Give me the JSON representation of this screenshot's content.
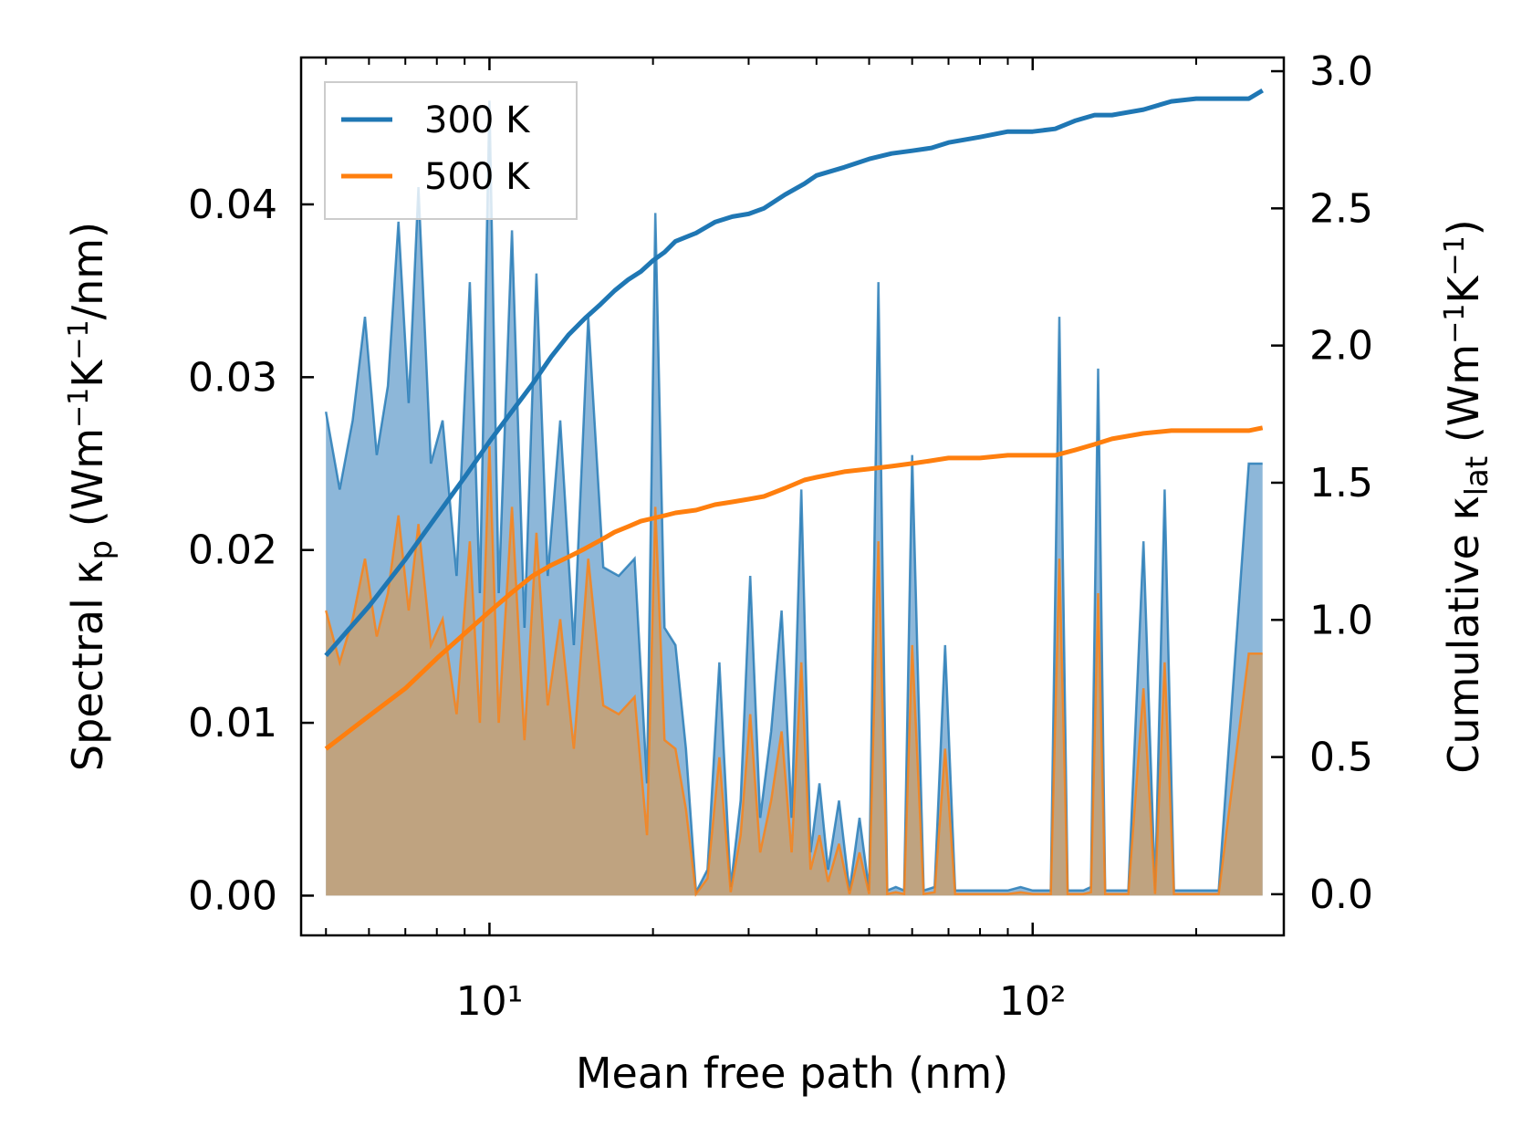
{
  "chart_data": {
    "type": "area",
    "title": "",
    "xlabel": "Mean free path (nm)",
    "ylabel_left": "Spectral κp (Wm⁻¹K⁻¹/nm)",
    "ylabel_right": "Cumulative κlat (Wm⁻¹K⁻¹)",
    "xscale": "log",
    "xlim": [
      4.5,
      290
    ],
    "ylim_left": [
      -0.0023,
      0.0485
    ],
    "ylim_right": [
      -0.15,
      3.05
    ],
    "x_ticks": [
      10,
      100
    ],
    "x_tick_labels": [
      "10¹",
      "10²"
    ],
    "y_ticks_left": [
      0.0,
      0.01,
      0.02,
      0.03,
      0.04
    ],
    "y_tick_labels_left": [
      "0.00",
      "0.01",
      "0.02",
      "0.03",
      "0.04"
    ],
    "y_ticks_right": [
      0.0,
      0.5,
      1.0,
      1.5,
      2.0,
      2.5,
      3.0
    ],
    "y_tick_labels_right": [
      "0.0",
      "0.5",
      "1.0",
      "1.5",
      "2.0",
      "2.5",
      "3.0"
    ],
    "legend": {
      "position": "top-left",
      "entries": [
        "300 K",
        "500 K"
      ]
    },
    "colors": {
      "300K": "#1f77b4",
      "500K": "#ff7f0e",
      "fill300": "#8db7d9",
      "fill500": "#c8a070"
    },
    "series": [
      {
        "name": "300 K",
        "type": "spectral-area",
        "axis": "left",
        "x": [
          5.0,
          5.3,
          5.6,
          5.9,
          6.2,
          6.5,
          6.8,
          7.1,
          7.4,
          7.8,
          8.2,
          8.7,
          9.2,
          9.6,
          10.0,
          10.4,
          11.0,
          11.6,
          12.2,
          12.8,
          13.5,
          14.3,
          15.2,
          16.2,
          17.3,
          18.5,
          19.5,
          20.2,
          21.0,
          22.0,
          23.0,
          24.0,
          25.2,
          26.5,
          27.8,
          29.0,
          30.2,
          31.5,
          33.0,
          34.5,
          36.0,
          37.5,
          39.0,
          40.5,
          42.0,
          44.0,
          46.0,
          48.0,
          50.0,
          52.0,
          54.0,
          56.0,
          58.0,
          60.0,
          63.0,
          66.0,
          69.0,
          72.0,
          75.0,
          78.0,
          81.0,
          85.0,
          90.0,
          95.0,
          100.0,
          108.0,
          112.0,
          116.0,
          120.0,
          124.0,
          128.0,
          132.0,
          136.0,
          140.0,
          150.0,
          160.0,
          168.0,
          175.0,
          182.0,
          190.0,
          200.0,
          220.0,
          250.0,
          265.0
        ],
        "values": [
          0.028,
          0.0235,
          0.0275,
          0.0335,
          0.0255,
          0.0295,
          0.039,
          0.0285,
          0.041,
          0.025,
          0.0275,
          0.0185,
          0.0355,
          0.0175,
          0.046,
          0.0175,
          0.0385,
          0.0155,
          0.036,
          0.0185,
          0.0275,
          0.0145,
          0.0335,
          0.019,
          0.0185,
          0.0195,
          0.0065,
          0.0395,
          0.0155,
          0.0145,
          0.0085,
          0.0002,
          0.0015,
          0.0135,
          0.0005,
          0.0055,
          0.0185,
          0.0045,
          0.0095,
          0.0165,
          0.0045,
          0.0235,
          0.0025,
          0.0065,
          0.0015,
          0.0055,
          0.0003,
          0.0045,
          0.0003,
          0.0355,
          0.0003,
          0.0005,
          0.0003,
          0.0255,
          0.0003,
          0.0005,
          0.0145,
          0.0003,
          0.0003,
          0.0003,
          0.0003,
          0.0003,
          0.0003,
          0.0005,
          0.0003,
          0.0003,
          0.0335,
          0.0003,
          0.0003,
          0.0003,
          0.0005,
          0.0305,
          0.0003,
          0.0003,
          0.0003,
          0.0205,
          0.0003,
          0.0235,
          0.0003,
          0.0003,
          0.0003,
          0.0003,
          0.025,
          0.025
        ]
      },
      {
        "name": "500 K",
        "type": "spectral-area",
        "axis": "left",
        "x": [
          5.0,
          5.3,
          5.6,
          5.9,
          6.2,
          6.5,
          6.8,
          7.1,
          7.4,
          7.8,
          8.2,
          8.7,
          9.2,
          9.6,
          10.0,
          10.4,
          11.0,
          11.6,
          12.2,
          12.8,
          13.5,
          14.3,
          15.2,
          16.2,
          17.3,
          18.5,
          19.5,
          20.2,
          21.0,
          22.0,
          23.0,
          24.0,
          25.2,
          26.5,
          27.8,
          29.0,
          30.2,
          31.5,
          33.0,
          34.5,
          36.0,
          37.5,
          39.0,
          40.5,
          42.0,
          44.0,
          46.0,
          48.0,
          50.0,
          52.0,
          54.0,
          56.0,
          58.0,
          60.0,
          63.0,
          66.0,
          69.0,
          72.0,
          75.0,
          78.0,
          81.0,
          85.0,
          90.0,
          95.0,
          100.0,
          108.0,
          112.0,
          116.0,
          120.0,
          124.0,
          128.0,
          132.0,
          136.0,
          140.0,
          150.0,
          160.0,
          168.0,
          175.0,
          182.0,
          190.0,
          200.0,
          220.0,
          250.0,
          265.0
        ],
        "values": [
          0.0165,
          0.0135,
          0.016,
          0.0195,
          0.015,
          0.0175,
          0.022,
          0.0165,
          0.0215,
          0.0145,
          0.016,
          0.0105,
          0.0205,
          0.01,
          0.026,
          0.01,
          0.0225,
          0.009,
          0.021,
          0.011,
          0.016,
          0.0085,
          0.0195,
          0.011,
          0.0105,
          0.0115,
          0.0035,
          0.0225,
          0.009,
          0.0085,
          0.005,
          0.0001,
          0.001,
          0.008,
          0.0002,
          0.0035,
          0.0105,
          0.0025,
          0.0055,
          0.0095,
          0.0025,
          0.0135,
          0.0015,
          0.0035,
          0.0008,
          0.003,
          0.0001,
          0.0025,
          0.0001,
          0.0205,
          0.0001,
          0.0002,
          0.0001,
          0.0145,
          0.0001,
          0.0002,
          0.0085,
          0.0001,
          0.0001,
          0.0001,
          0.0001,
          0.0001,
          0.0001,
          0.0002,
          0.0001,
          0.0001,
          0.0195,
          0.0001,
          0.0001,
          0.0001,
          0.0002,
          0.0175,
          0.0001,
          0.0001,
          0.0001,
          0.012,
          0.0001,
          0.0135,
          0.0001,
          0.0001,
          0.0001,
          0.0001,
          0.014,
          0.014
        ]
      },
      {
        "name": "300 K",
        "type": "cumulative-line",
        "axis": "right",
        "x": [
          5.0,
          6.0,
          7.0,
          8.0,
          9.0,
          10.0,
          11.0,
          12.0,
          13.0,
          14.0,
          15.0,
          16.0,
          17.0,
          18.0,
          19.0,
          20.0,
          21.0,
          22.0,
          24.0,
          26.0,
          28.0,
          30.0,
          32.0,
          35.0,
          38.0,
          40.0,
          45.0,
          50.0,
          55.0,
          60.0,
          65.0,
          70.0,
          80.0,
          90.0,
          100.0,
          110.0,
          120.0,
          130.0,
          140.0,
          160.0,
          180.0,
          200.0,
          250.0,
          265.0
        ],
        "values": [
          0.87,
          1.05,
          1.22,
          1.38,
          1.52,
          1.65,
          1.76,
          1.86,
          1.96,
          2.04,
          2.1,
          2.15,
          2.2,
          2.24,
          2.27,
          2.31,
          2.34,
          2.38,
          2.41,
          2.45,
          2.47,
          2.48,
          2.5,
          2.55,
          2.59,
          2.62,
          2.65,
          2.68,
          2.7,
          2.71,
          2.72,
          2.74,
          2.76,
          2.78,
          2.78,
          2.79,
          2.82,
          2.84,
          2.84,
          2.86,
          2.89,
          2.9,
          2.9,
          2.93
        ]
      },
      {
        "name": "500 K",
        "type": "cumulative-line",
        "axis": "right",
        "x": [
          5.0,
          6.0,
          7.0,
          8.0,
          9.0,
          10.0,
          11.0,
          12.0,
          13.0,
          14.0,
          15.0,
          16.0,
          17.0,
          18.0,
          19.0,
          20.0,
          21.0,
          22.0,
          24.0,
          26.0,
          28.0,
          30.0,
          32.0,
          35.0,
          38.0,
          40.0,
          45.0,
          50.0,
          55.0,
          60.0,
          65.0,
          70.0,
          80.0,
          90.0,
          100.0,
          110.0,
          120.0,
          130.0,
          140.0,
          160.0,
          180.0,
          200.0,
          250.0,
          265.0
        ],
        "values": [
          0.53,
          0.65,
          0.75,
          0.86,
          0.95,
          1.03,
          1.1,
          1.16,
          1.2,
          1.23,
          1.26,
          1.29,
          1.32,
          1.34,
          1.36,
          1.37,
          1.38,
          1.39,
          1.4,
          1.42,
          1.43,
          1.44,
          1.45,
          1.48,
          1.51,
          1.52,
          1.54,
          1.55,
          1.56,
          1.57,
          1.58,
          1.59,
          1.59,
          1.6,
          1.6,
          1.6,
          1.62,
          1.64,
          1.66,
          1.68,
          1.69,
          1.69,
          1.69,
          1.7
        ]
      }
    ]
  }
}
